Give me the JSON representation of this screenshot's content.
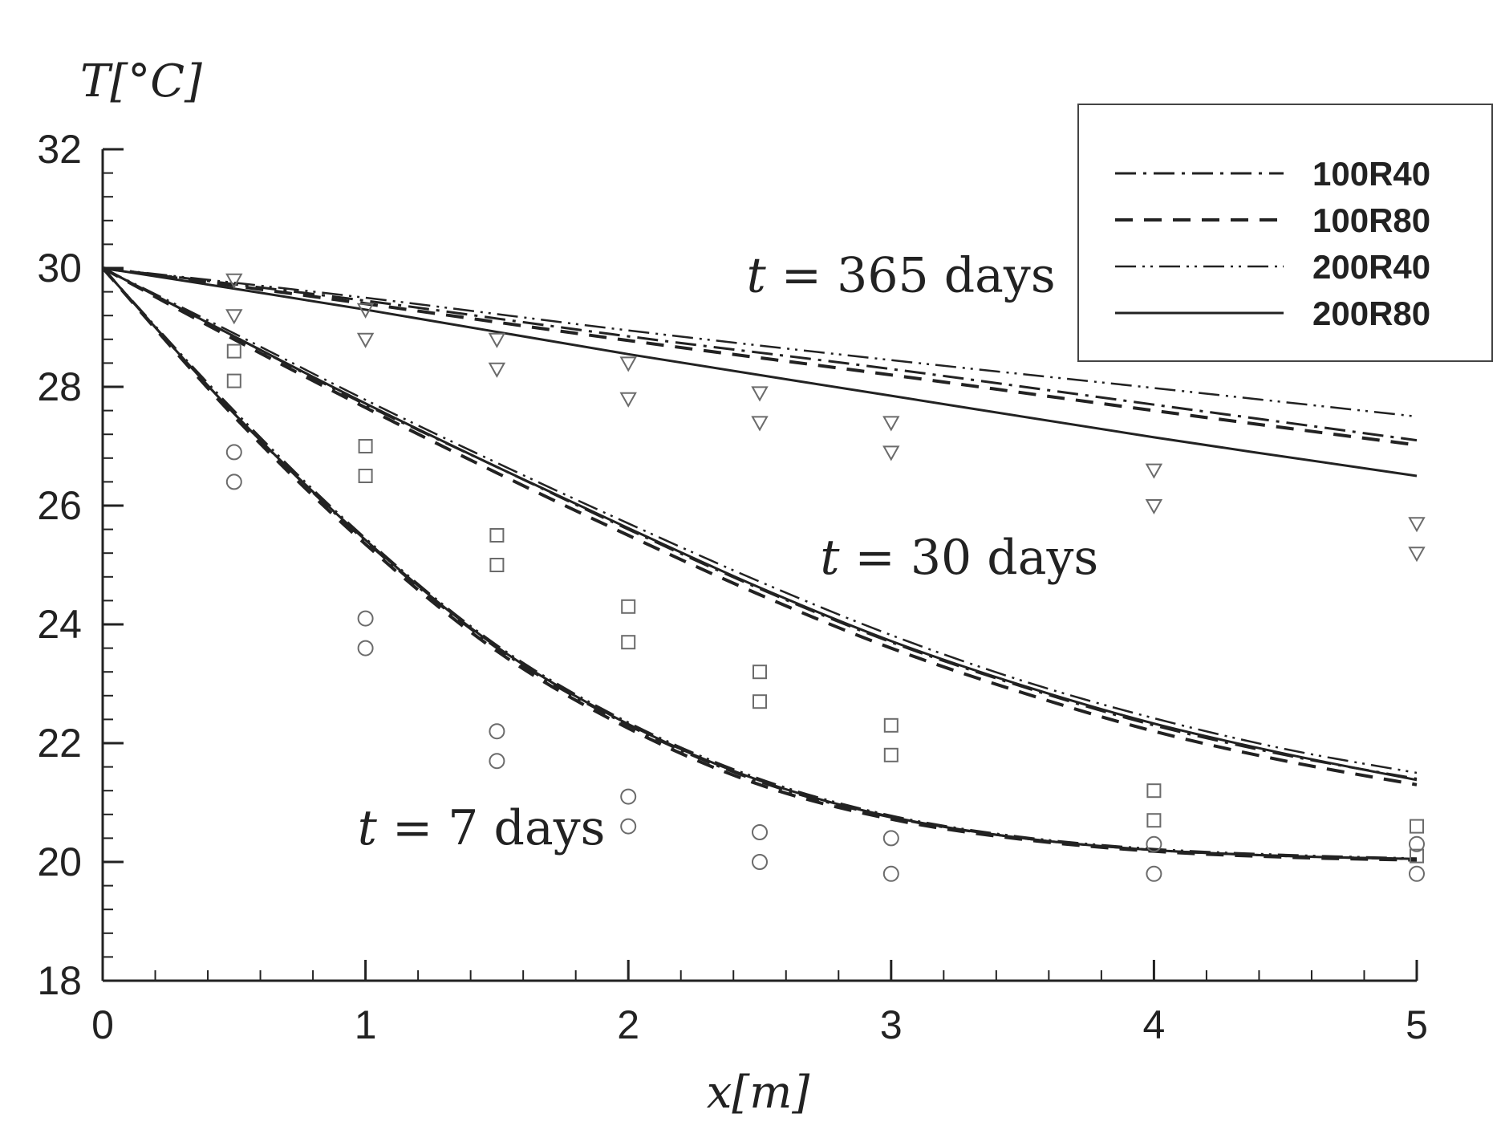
{
  "chart_data": {
    "type": "line",
    "title": "",
    "xlabel": "x[m]",
    "ylabel": "T[°C]",
    "xlim": [
      0,
      5
    ],
    "ylim": [
      18,
      32
    ],
    "x_ticks": [
      "0",
      "1",
      "2",
      "3",
      "4",
      "5"
    ],
    "y_ticks": [
      "18",
      "20",
      "22",
      "24",
      "26",
      "28",
      "30",
      "32"
    ],
    "grid": false,
    "legend_position": "top-right",
    "legend": [
      {
        "label": "100R40",
        "style": "dash-dot"
      },
      {
        "label": "100R80",
        "style": "dashed"
      },
      {
        "label": "200R40",
        "style": "dash-dot-dot"
      },
      {
        "label": "200R80",
        "style": "solid"
      }
    ],
    "annotations": [
      {
        "text": "t = 365 days",
        "x": 2.45,
        "y": 29.6
      },
      {
        "text": "t = 30 days",
        "x": 2.73,
        "y": 24.85
      },
      {
        "text": "t = 7 days",
        "x": 0.97,
        "y": 20.3
      }
    ],
    "series": [
      {
        "group": "t = 365 days",
        "legend": "100R40",
        "x": [
          0,
          1,
          2,
          3,
          4,
          5
        ],
        "y": [
          30.0,
          29.45,
          28.85,
          28.3,
          27.7,
          27.1
        ]
      },
      {
        "group": "t = 365 days",
        "legend": "100R80",
        "x": [
          0,
          1,
          2,
          3,
          4,
          5
        ],
        "y": [
          30.0,
          29.4,
          28.78,
          28.2,
          27.6,
          27.02
        ]
      },
      {
        "group": "t = 365 days",
        "legend": "200R40",
        "x": [
          0,
          1,
          2,
          3,
          4,
          5
        ],
        "y": [
          30.0,
          29.5,
          28.95,
          28.45,
          27.98,
          27.5
        ]
      },
      {
        "group": "t = 365 days",
        "legend": "200R80",
        "x": [
          0,
          1,
          2,
          3,
          4,
          5
        ],
        "y": [
          30.0,
          29.3,
          28.55,
          27.85,
          27.15,
          26.5
        ]
      },
      {
        "group": "t = 30 days",
        "legend": "100R40",
        "x": [
          0,
          0.5,
          1,
          1.5,
          2,
          2.5,
          3,
          3.5,
          4,
          4.5,
          5
        ],
        "y": [
          30.0,
          28.85,
          27.7,
          26.65,
          25.6,
          24.6,
          23.7,
          22.95,
          22.3,
          21.8,
          21.4
        ]
      },
      {
        "group": "t = 30 days",
        "legend": "100R80",
        "x": [
          0,
          0.5,
          1,
          1.5,
          2,
          2.5,
          3,
          3.5,
          4,
          4.5,
          5
        ],
        "y": [
          30.0,
          28.8,
          27.65,
          26.55,
          25.5,
          24.5,
          23.6,
          22.85,
          22.2,
          21.7,
          21.3
        ]
      },
      {
        "group": "t = 30 days",
        "legend": "200R40",
        "x": [
          0,
          0.5,
          1,
          1.5,
          2,
          2.5,
          3,
          3.5,
          4,
          4.5,
          5
        ],
        "y": [
          30.0,
          28.9,
          27.78,
          26.72,
          25.7,
          24.72,
          23.82,
          23.05,
          22.42,
          21.9,
          21.5
        ]
      },
      {
        "group": "t = 30 days",
        "legend": "200R80",
        "x": [
          0,
          0.5,
          1,
          1.5,
          2,
          2.5,
          3,
          3.5,
          4,
          4.5,
          5
        ],
        "y": [
          30.0,
          28.85,
          27.72,
          26.65,
          25.62,
          24.62,
          23.72,
          22.97,
          22.33,
          21.82,
          21.38
        ]
      },
      {
        "group": "t = 7 days",
        "legend": "100R40",
        "x": [
          0,
          0.5,
          1,
          1.5,
          2,
          2.5,
          3,
          3.5,
          4,
          4.5,
          5
        ],
        "y": [
          30.0,
          27.55,
          25.4,
          23.6,
          22.3,
          21.35,
          20.75,
          20.4,
          20.2,
          20.1,
          20.05
        ]
      },
      {
        "group": "t = 7 days",
        "legend": "100R80",
        "x": [
          0,
          0.5,
          1,
          1.5,
          2,
          2.5,
          3,
          3.5,
          4,
          4.5,
          5
        ],
        "y": [
          30.0,
          27.5,
          25.35,
          23.55,
          22.25,
          21.3,
          20.72,
          20.38,
          20.18,
          20.08,
          20.03
        ]
      },
      {
        "group": "t = 7 days",
        "legend": "200R40",
        "x": [
          0,
          0.5,
          1,
          1.5,
          2,
          2.5,
          3,
          3.5,
          4,
          4.5,
          5
        ],
        "y": [
          30.0,
          27.6,
          25.45,
          23.65,
          22.35,
          21.4,
          20.78,
          20.42,
          20.22,
          20.12,
          20.06
        ]
      },
      {
        "group": "t = 7 days",
        "legend": "200R80",
        "x": [
          0,
          0.5,
          1,
          1.5,
          2,
          2.5,
          3,
          3.5,
          4,
          4.5,
          5
        ],
        "y": [
          30.0,
          27.55,
          25.42,
          23.62,
          22.32,
          21.37,
          20.76,
          20.4,
          20.2,
          20.1,
          20.05
        ]
      }
    ],
    "markers": [
      {
        "shape": "triangle-down",
        "points": [
          [
            0.5,
            29.8
          ],
          [
            0.5,
            29.2
          ],
          [
            1,
            29.3
          ],
          [
            1,
            28.8
          ],
          [
            1.5,
            28.8
          ],
          [
            1.5,
            28.3
          ],
          [
            2,
            28.4
          ],
          [
            2,
            27.8
          ],
          [
            2.5,
            27.9
          ],
          [
            2.5,
            27.4
          ],
          [
            3,
            27.4
          ],
          [
            3,
            26.9
          ],
          [
            4,
            26.6
          ],
          [
            4,
            26.0
          ],
          [
            5,
            25.7
          ],
          [
            5,
            25.2
          ]
        ]
      },
      {
        "shape": "square",
        "points": [
          [
            0.5,
            28.6
          ],
          [
            0.5,
            28.1
          ],
          [
            1,
            27.0
          ],
          [
            1,
            26.5
          ],
          [
            1.5,
            25.5
          ],
          [
            1.5,
            25.0
          ],
          [
            2,
            24.3
          ],
          [
            2,
            23.7
          ],
          [
            2.5,
            23.2
          ],
          [
            2.5,
            22.7
          ],
          [
            3,
            22.3
          ],
          [
            3,
            21.8
          ],
          [
            4,
            21.2
          ],
          [
            4,
            20.7
          ],
          [
            5,
            20.6
          ],
          [
            5,
            20.1
          ]
        ]
      },
      {
        "shape": "circle",
        "points": [
          [
            0.5,
            26.9
          ],
          [
            0.5,
            26.4
          ],
          [
            1,
            24.1
          ],
          [
            1,
            23.6
          ],
          [
            1.5,
            22.2
          ],
          [
            1.5,
            21.7
          ],
          [
            2,
            21.1
          ],
          [
            2,
            20.6
          ],
          [
            2.5,
            20.5
          ],
          [
            2.5,
            20.0
          ],
          [
            3,
            20.4
          ],
          [
            3,
            19.8
          ],
          [
            4,
            20.3
          ],
          [
            4,
            19.8
          ],
          [
            5,
            20.3
          ],
          [
            5,
            19.8
          ]
        ]
      }
    ]
  }
}
